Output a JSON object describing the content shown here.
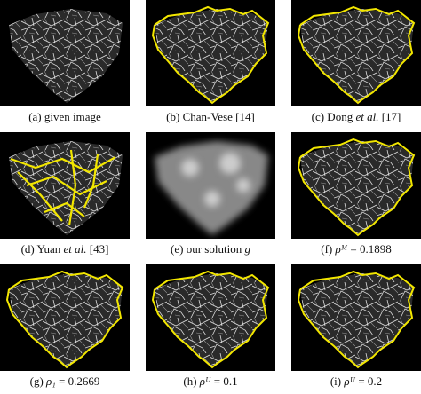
{
  "figure": {
    "panels": [
      {
        "caption": [
          {
            "text": "(a) given image"
          }
        ]
      },
      {
        "caption": [
          {
            "text": "(b) Chan-Vese [14]"
          }
        ]
      },
      {
        "caption": [
          {
            "text": "(c) Dong "
          },
          {
            "text": "et al.",
            "italic": true
          },
          {
            "text": " [17]"
          }
        ]
      },
      {
        "caption": [
          {
            "text": "(d) Yuan "
          },
          {
            "text": "et al.",
            "italic": true
          },
          {
            "text": " [43]"
          }
        ]
      },
      {
        "caption": [
          {
            "text": "(e) our solution "
          },
          {
            "text": "g",
            "italic": true
          }
        ]
      },
      {
        "caption": [
          {
            "text": "(f) "
          },
          {
            "text": "ρᴹ",
            "italic": true
          },
          {
            "text": " = 0.1898"
          }
        ]
      },
      {
        "caption": [
          {
            "text": "(g) "
          },
          {
            "text": "ρ₁",
            "italic": true
          },
          {
            "text": " = 0.2669"
          }
        ]
      },
      {
        "caption": [
          {
            "text": "(h) "
          },
          {
            "text": "ρᵁ",
            "italic": true
          },
          {
            "text": " = 0.1"
          }
        ]
      },
      {
        "caption": [
          {
            "text": "(i) "
          },
          {
            "text": "ρᵁ",
            "italic": true
          },
          {
            "text": " = 0.2"
          }
        ]
      }
    ]
  }
}
